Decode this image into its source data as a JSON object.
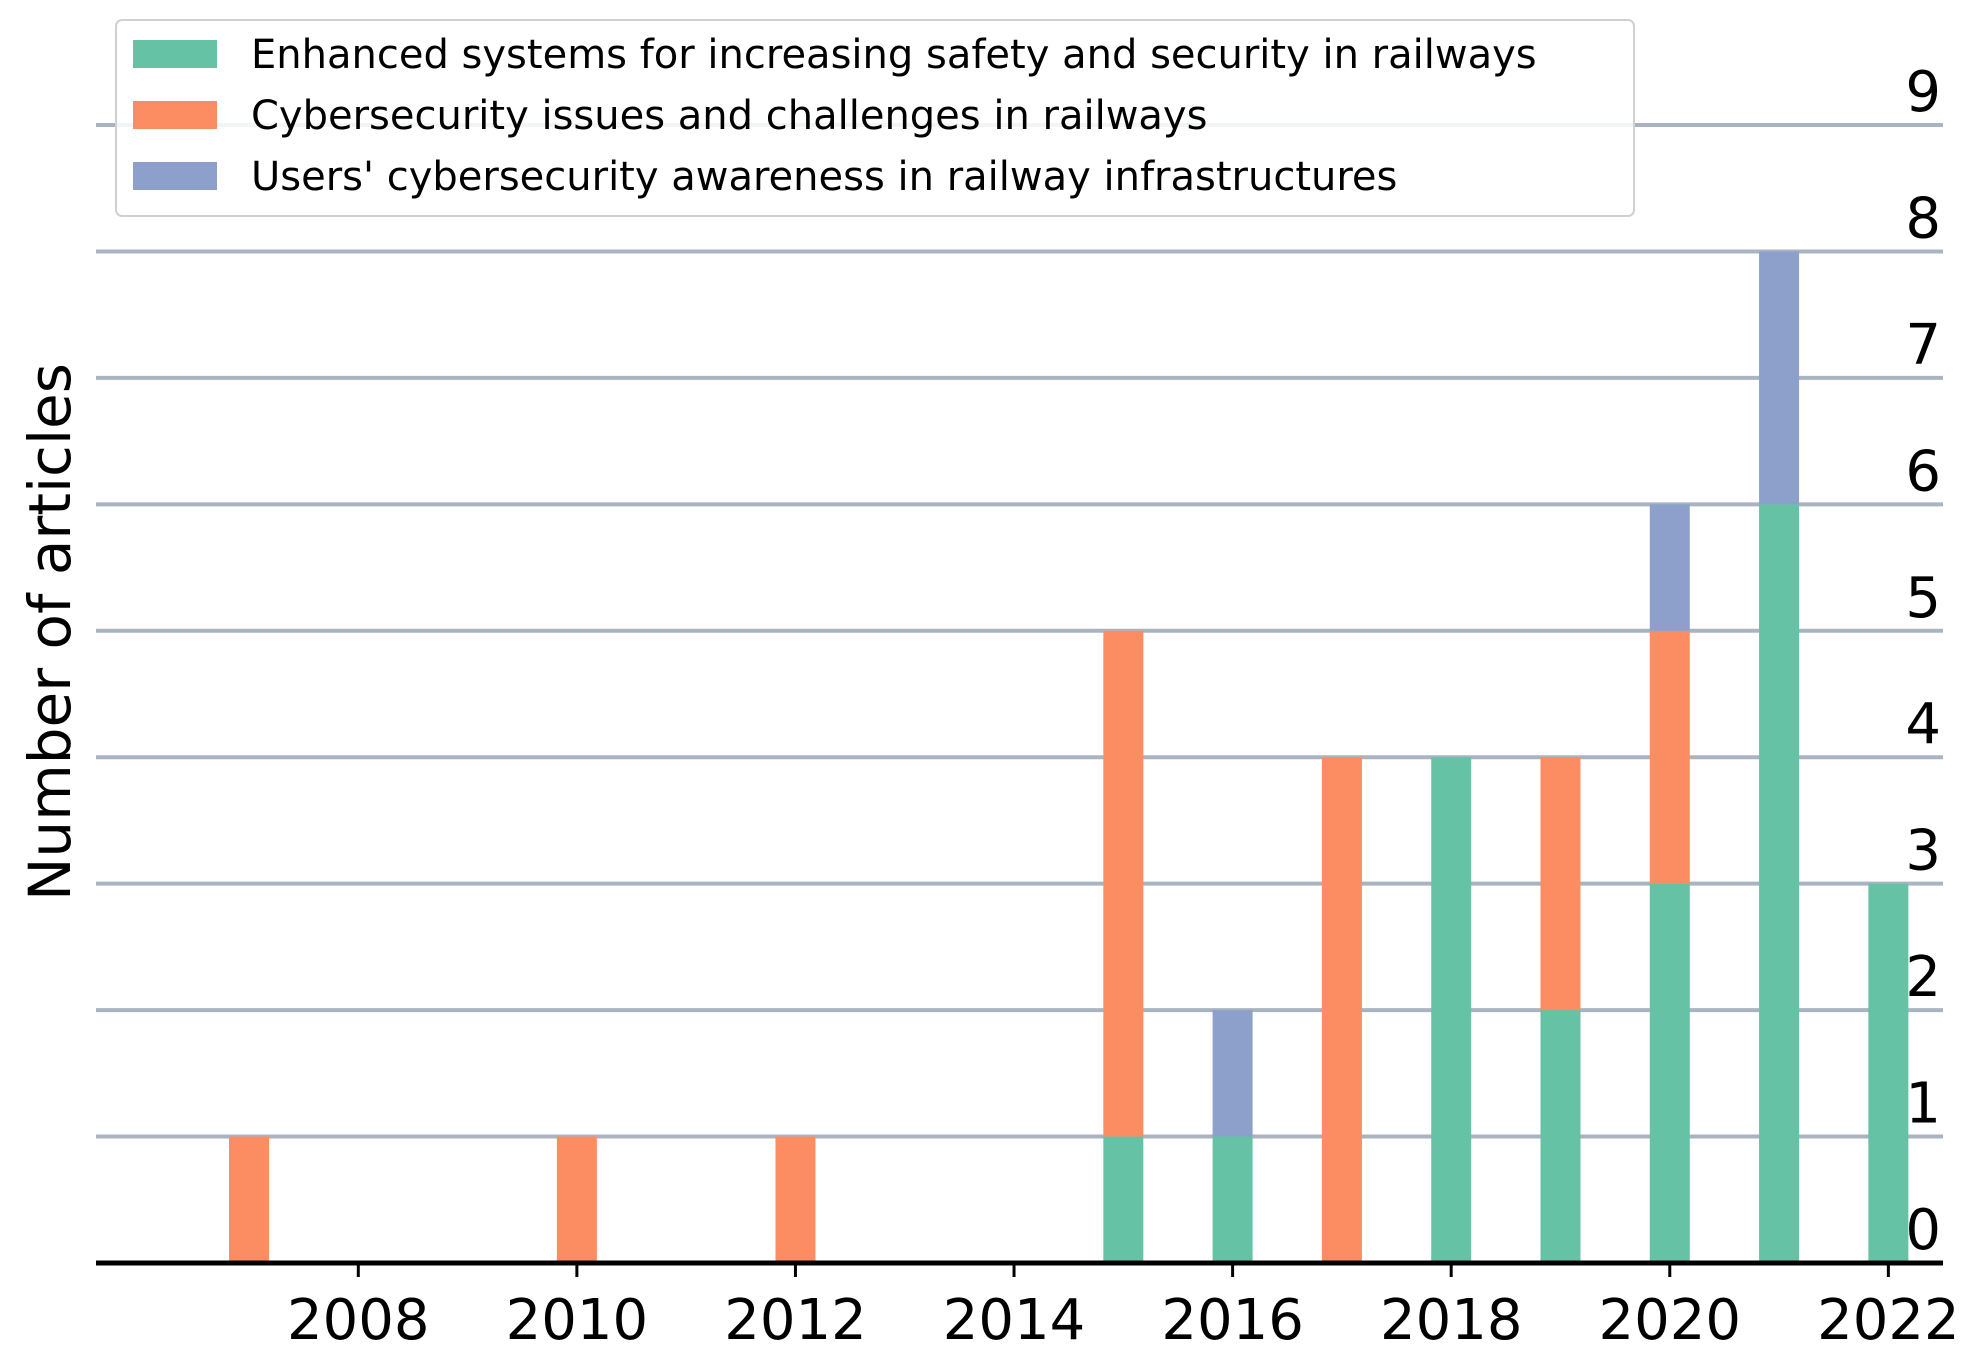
{
  "chart_data": {
    "type": "bar",
    "stacked": true,
    "title": "",
    "xlabel": "",
    "ylabel": "Number of articles",
    "x": [
      2007,
      2010,
      2012,
      2015,
      2016,
      2017,
      2018,
      2019,
      2020,
      2021,
      2022
    ],
    "xticks": [
      2008,
      2010,
      2012,
      2014,
      2016,
      2018,
      2020,
      2022
    ],
    "xlim": [
      2005.6,
      2022.5
    ],
    "yticks": [
      0,
      1,
      2,
      3,
      4,
      5,
      6,
      7,
      8,
      9
    ],
    "ylim": [
      0,
      9
    ],
    "grid": true,
    "legend_position": "top-left",
    "series": [
      {
        "name": "Enhanced systems for increasing safety and security in railways",
        "color": "#66c2a5",
        "values": [
          0,
          0,
          0,
          1,
          1,
          0,
          4,
          2,
          3,
          6,
          3
        ]
      },
      {
        "name": "Cybersecurity issues and challenges in railways",
        "color": "#fc8d62",
        "values": [
          1,
          1,
          1,
          4,
          0,
          4,
          0,
          2,
          2,
          0,
          0
        ]
      },
      {
        "name": "Users' cybersecurity awareness in railway infrastructures",
        "color": "#8da0cb",
        "values": [
          0,
          0,
          0,
          0,
          1,
          0,
          0,
          0,
          1,
          2,
          0
        ]
      }
    ]
  }
}
